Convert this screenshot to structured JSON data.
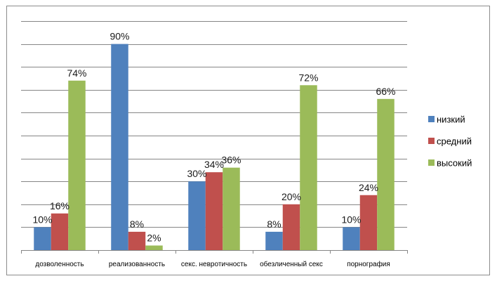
{
  "chart_data": {
    "type": "bar",
    "categories": [
      "дозволенность",
      "реализованность",
      "секс. невротичность",
      "обезличенный секс",
      "порнография"
    ],
    "series": [
      {
        "name": "низкий",
        "values": [
          10,
          90,
          30,
          8,
          10
        ],
        "labels": [
          "10%",
          "90%",
          "30%",
          "8%",
          "10%"
        ],
        "color": "#4f81bd"
      },
      {
        "name": "средний",
        "values": [
          16,
          8,
          34,
          20,
          24
        ],
        "labels": [
          "16%",
          "8%",
          "34%",
          "20%",
          "24%"
        ],
        "color": "#c0504d"
      },
      {
        "name": "высокий",
        "values": [
          74,
          2,
          36,
          72,
          66
        ],
        "labels": [
          "74%",
          "2%",
          "36%",
          "72%",
          "66%"
        ],
        "color": "#9bbb59"
      }
    ],
    "ylim": [
      0,
      100
    ],
    "ytick_step": 10,
    "grid": true,
    "legend": "right",
    "title": "",
    "xlabel": "",
    "ylabel": ""
  }
}
